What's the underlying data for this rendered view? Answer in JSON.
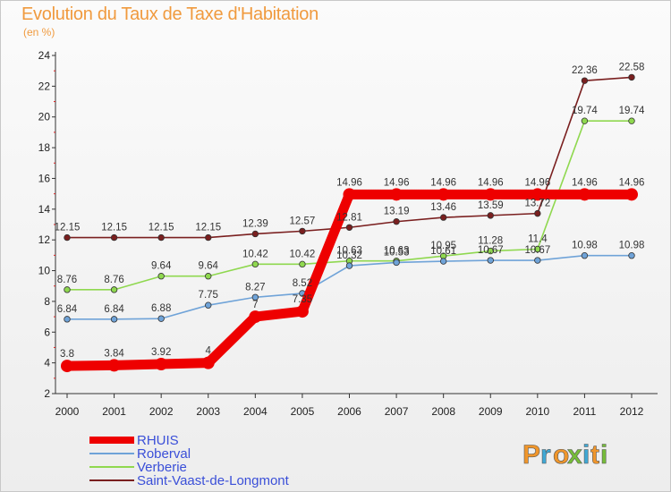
{
  "header": {
    "title": "Evolution du Taux de Taxe d'Habitation",
    "subtitle": "(en %)"
  },
  "logo": {
    "text": "Proxiti",
    "colors": [
      "#f0962b",
      "#3fa9d6",
      "#f0962b",
      "#76bd39",
      "#3fa9d6",
      "#f0962b",
      "#76bd39"
    ]
  },
  "chart_data": {
    "type": "line",
    "title": "Evolution du Taux de Taxe d'Habitation",
    "ylabel": "(en %)",
    "xlabel": "",
    "ylim": [
      2,
      24
    ],
    "yticks": [
      2,
      4,
      6,
      8,
      10,
      12,
      14,
      16,
      18,
      20,
      22,
      24
    ],
    "grid": false,
    "legend": "bottom-left",
    "x": [
      "2000",
      "2001",
      "2002",
      "2003",
      "2004",
      "2005",
      "2006",
      "2007",
      "2008",
      "2009",
      "2010",
      "2011",
      "2012"
    ],
    "series": [
      {
        "name": "Saint-Vaast-de-Longmont",
        "color": "#7a1f1f",
        "values": [
          12.15,
          12.15,
          12.15,
          12.15,
          12.39,
          12.57,
          12.81,
          13.19,
          13.46,
          13.59,
          13.72,
          22.36,
          22.58
        ],
        "labels": [
          "12.15",
          "12.15",
          "12.15",
          "12.15",
          "12.39",
          "12.57",
          "12.81",
          "13.19",
          "13.46",
          "13.59",
          "13.72",
          "22.36",
          "22.58"
        ]
      },
      {
        "name": "Verberie",
        "color": "#8fd84f",
        "values": [
          8.76,
          8.76,
          9.64,
          9.64,
          10.42,
          10.42,
          10.63,
          10.63,
          10.95,
          11.28,
          11.4,
          19.74,
          19.74
        ],
        "labels": [
          "8.76",
          "8.76",
          "9.64",
          "9.64",
          "10.42",
          "10.42",
          "10.63",
          "10.63",
          "10.95",
          "11.28",
          "11.4",
          "19.74",
          "19.74"
        ]
      },
      {
        "name": "Roberval",
        "color": "#6fa3d8",
        "values": [
          6.84,
          6.84,
          6.88,
          7.75,
          8.27,
          8.52,
          10.32,
          10.53,
          10.61,
          10.67,
          10.67,
          10.98,
          10.98
        ],
        "labels": [
          "6.84",
          "6.84",
          "6.88",
          "7.75",
          "8.27",
          "8.52",
          "10.32",
          "10.53",
          "10.61",
          "10.67",
          "10.67",
          "10.98",
          "10.98"
        ]
      },
      {
        "name": "RHUIS",
        "color": "#ee0000",
        "values": [
          3.8,
          3.84,
          3.92,
          4,
          7,
          7.35,
          14.96,
          14.96,
          14.96,
          14.96,
          14.96,
          14.96,
          14.96
        ],
        "labels": [
          "3.8",
          "3.84",
          "3.92",
          "4",
          "7",
          "7.35",
          "14.96",
          "14.96",
          "14.96",
          "14.96",
          "14.96",
          "14.96",
          "14.96"
        ]
      }
    ],
    "legend_order": [
      "RHUIS",
      "Roberval",
      "Verberie",
      "Saint-Vaast-de-Longmont"
    ]
  }
}
